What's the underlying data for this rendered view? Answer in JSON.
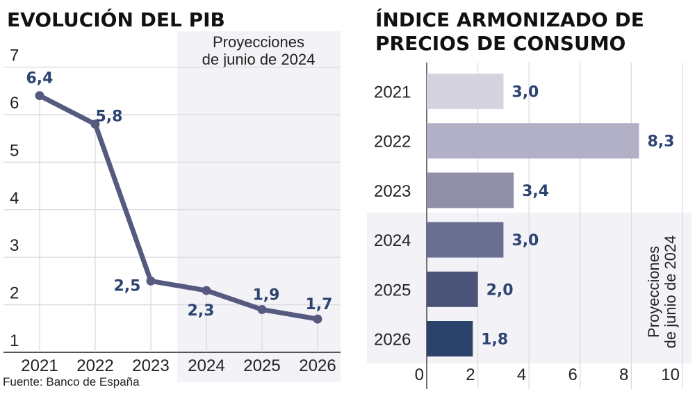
{
  "chart_data": [
    {
      "type": "line",
      "title": "EVOLUCIÓN DEL PIB",
      "categories": [
        "2021",
        "2022",
        "2023",
        "2024",
        "2025",
        "2026"
      ],
      "values": [
        6.4,
        5.8,
        2.5,
        2.3,
        1.9,
        1.7
      ],
      "data_labels": [
        "6,4",
        "5,8",
        "2,5",
        "2,3",
        "1,9",
        "1,7"
      ],
      "yticks": [
        "1",
        "2",
        "3",
        "4",
        "5",
        "6",
        "7"
      ],
      "ylim": [
        1,
        7
      ],
      "grid": true,
      "shaded_region": {
        "from": "2024",
        "to": "2026",
        "label_line1": "Proyecciones",
        "label_line2": "de junio de 2024"
      },
      "source": "Fuente: Banco de España",
      "colors": {
        "line": "#575a80",
        "label": "#2d4470",
        "shade": "#f3f3f7"
      }
    },
    {
      "type": "bar",
      "orientation": "horizontal",
      "title_line1": "ÍNDICE ARMONIZADO DE",
      "title_line2": "PRECIOS DE CONSUMO",
      "categories": [
        "2021",
        "2022",
        "2023",
        "2024",
        "2025",
        "2026"
      ],
      "values": [
        3.0,
        8.3,
        3.4,
        3.0,
        2.0,
        1.8
      ],
      "data_labels": [
        "3,0",
        "8,3",
        "3,4",
        "3,0",
        "2,0",
        "1,8"
      ],
      "xticks": [
        "0",
        "2",
        "4",
        "6",
        "8",
        "10"
      ],
      "xlim": [
        0,
        10
      ],
      "grid": true,
      "shaded_region": {
        "from": "2024",
        "to": "2026",
        "label_line1": "Proyecciones",
        "label_line2": "de junio de 2024"
      },
      "colors": {
        "bars": [
          "#d4d3de",
          "#b1b0c7",
          "#908fa8",
          "#6a6e90",
          "#4a5479",
          "#2b436b"
        ],
        "label": "#2d4470",
        "shade": "#f3f3f7"
      }
    }
  ]
}
